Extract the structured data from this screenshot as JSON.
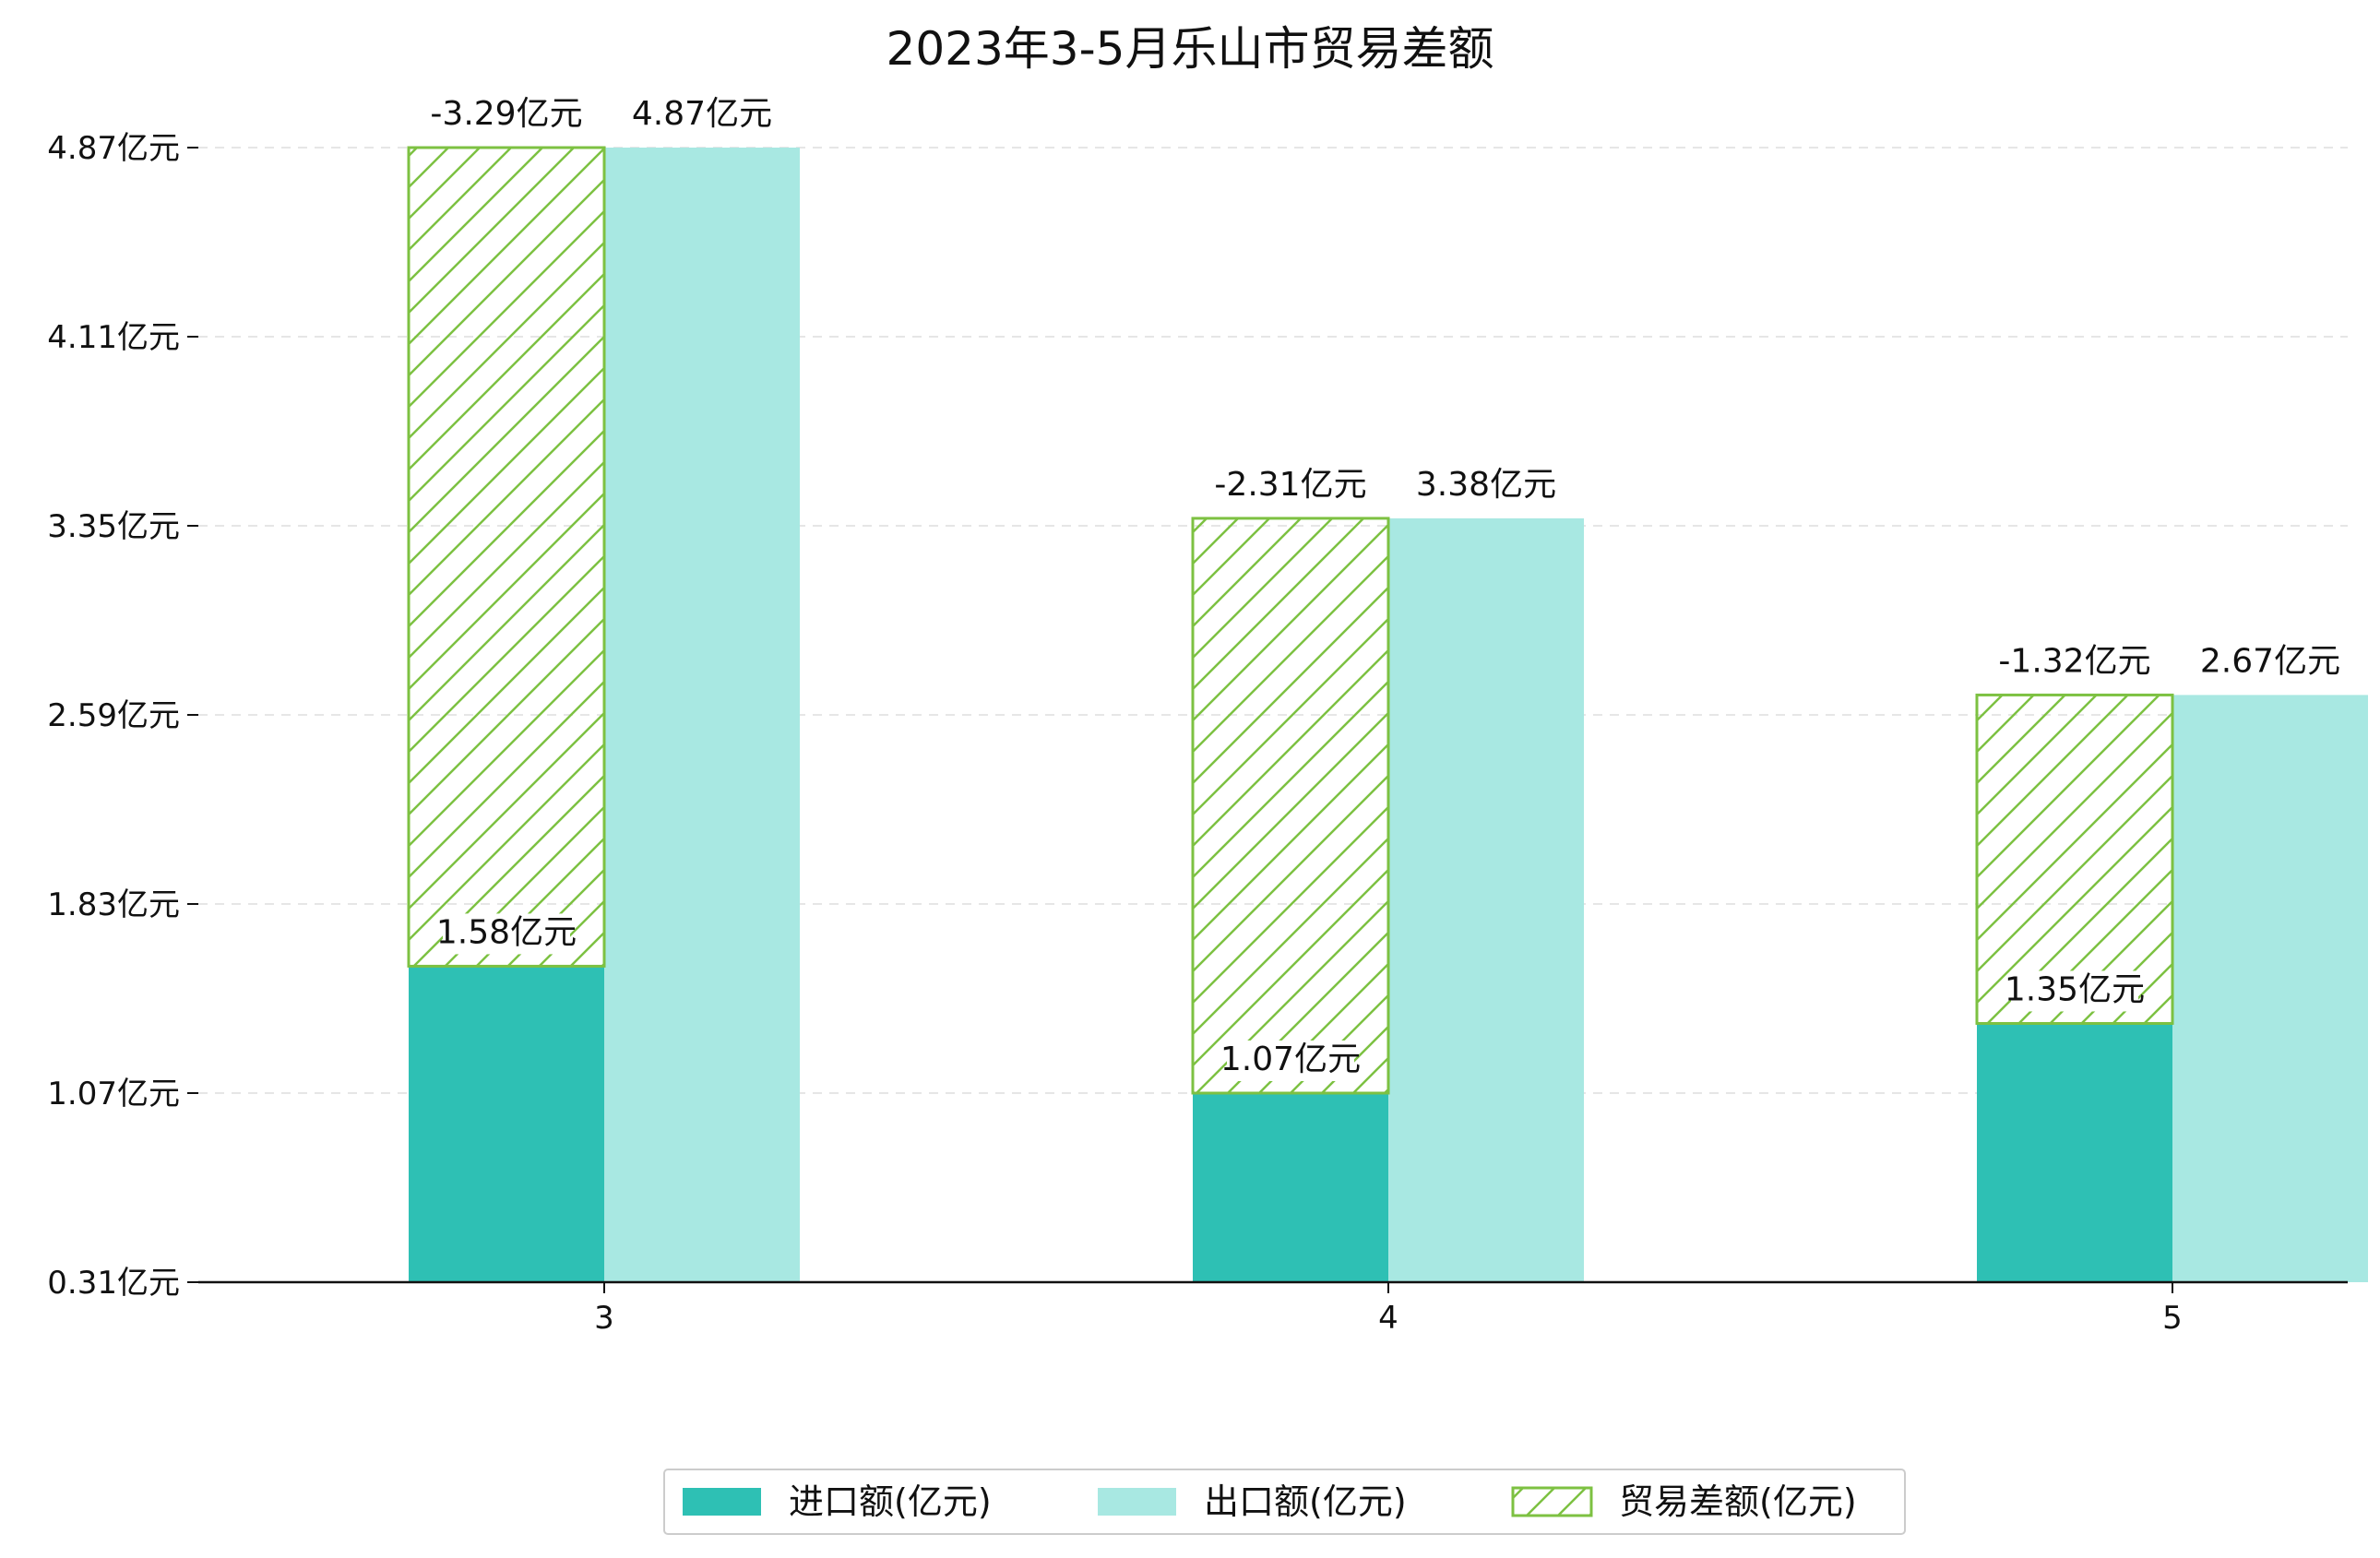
{
  "chart_data": {
    "type": "bar",
    "title": "2023年3-5月乐山市贸易差额",
    "xlabel": "",
    "ylabel": "",
    "categories": [
      "3",
      "4",
      "5"
    ],
    "ylim": [
      0.31,
      4.87
    ],
    "yticks": [
      "0.31亿元",
      "1.07亿元",
      "1.83亿元",
      "2.59亿元",
      "3.35亿元",
      "4.11亿元",
      "4.87亿元"
    ],
    "ytick_values": [
      0.31,
      1.07,
      1.83,
      2.59,
      3.35,
      4.11,
      4.87
    ],
    "grid": "y dashed",
    "legend_position": "bottom-center",
    "series": [
      {
        "name": "进口额(亿元)",
        "values": [
          1.58,
          1.07,
          1.35
        ],
        "labels": [
          "1.58亿元",
          "1.07亿元",
          "1.35亿元"
        ],
        "color": "#2ec0b4"
      },
      {
        "name": "出口额(亿元)",
        "values": [
          4.87,
          3.38,
          2.67
        ],
        "labels": [
          "4.87亿元",
          "3.38亿元",
          "2.67亿元"
        ],
        "color": "#a8e8e2"
      },
      {
        "name": "贸易差额(亿元)",
        "values": [
          -3.29,
          -2.31,
          -1.32
        ],
        "labels": [
          "-3.29亿元",
          "-2.31亿元",
          "-1.32亿元"
        ],
        "color": "#7dc142",
        "hatch": true
      }
    ]
  }
}
